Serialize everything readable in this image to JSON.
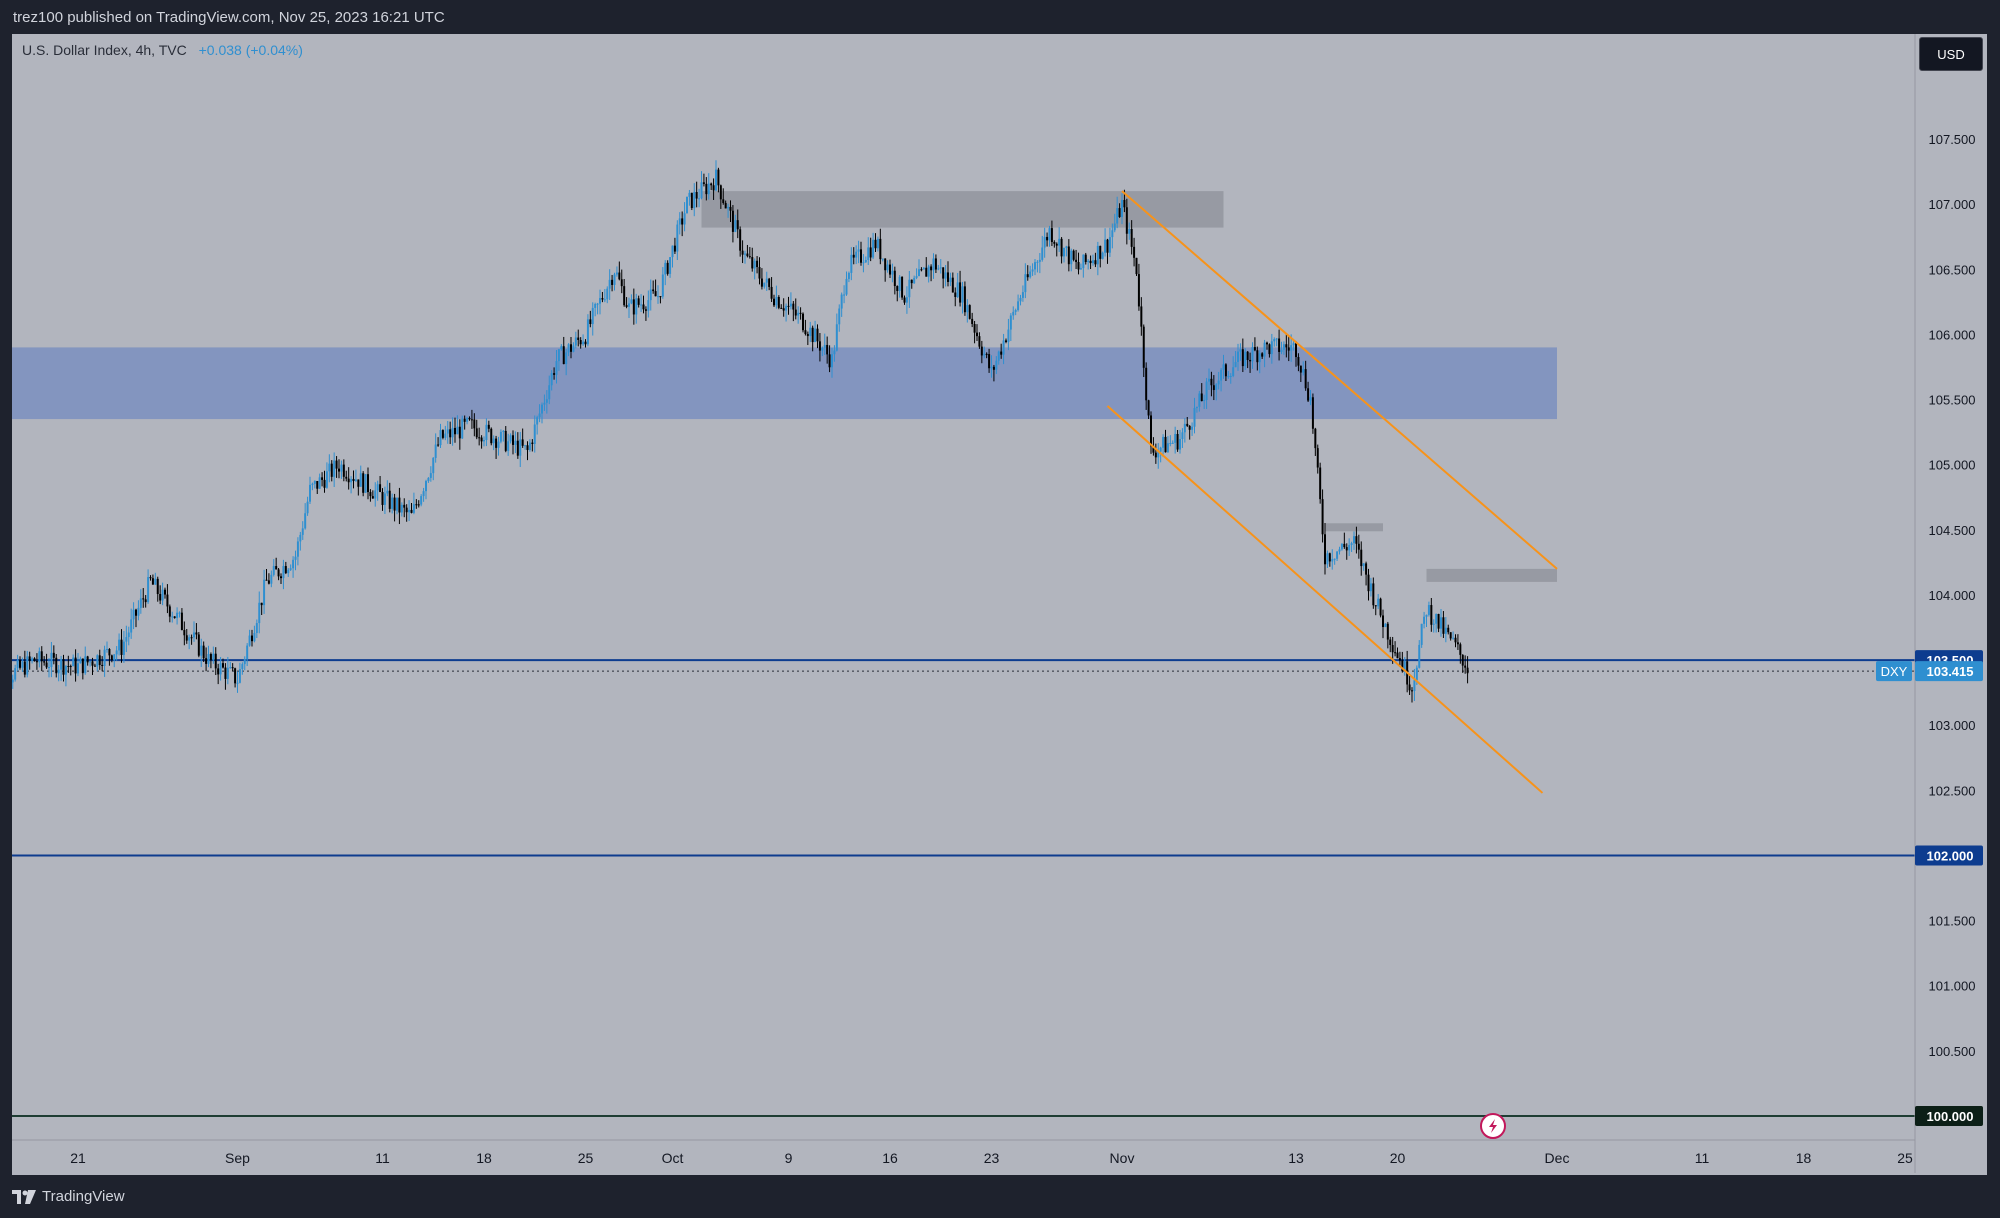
{
  "header": {
    "published_text": "trez100 published on TradingView.com, Nov 25, 2023 16:21 UTC"
  },
  "legend": {
    "symbol_text": "U.S. Dollar Index, 4h, TVC",
    "change_text": "+0.038 (+0.04%)"
  },
  "currency_button": {
    "label": "USD"
  },
  "branding": {
    "label": "TradingView"
  },
  "colors": {
    "background": "#b2b5be",
    "up_candle": "#2f8fd0",
    "down_candle": "#000000",
    "zone_blue": "#7a8fbf",
    "zone_gray": "#8e9199",
    "channel_orange": "#f7931a",
    "level_line": "#0d3c8f",
    "level_line_100": "#1e3d33"
  },
  "chart_data": {
    "type": "candlestick",
    "symbol": "DXY",
    "ylim": [
      99.8,
      108.3
    ],
    "y_ticks": [
      "107.500",
      "107.000",
      "106.500",
      "106.000",
      "105.500",
      "105.000",
      "104.500",
      "104.000",
      "103.500",
      "103.000",
      "102.500",
      "102.000",
      "101.500",
      "101.000",
      "100.500",
      "100.000"
    ],
    "x_ticks": [
      {
        "label": "21",
        "date": "2023-08-21"
      },
      {
        "label": "Sep",
        "date": "2023-09-01"
      },
      {
        "label": "11",
        "date": "2023-09-11"
      },
      {
        "label": "18",
        "date": "2023-09-18"
      },
      {
        "label": "25",
        "date": "2023-09-25"
      },
      {
        "label": "Oct",
        "date": "2023-10-01"
      },
      {
        "label": "9",
        "date": "2023-10-09"
      },
      {
        "label": "16",
        "date": "2023-10-16"
      },
      {
        "label": "23",
        "date": "2023-10-23"
      },
      {
        "label": "Nov",
        "date": "2023-11-01"
      },
      {
        "label": "13",
        "date": "2023-11-13"
      },
      {
        "label": "20",
        "date": "2023-11-20"
      },
      {
        "label": "Dec",
        "date": "2023-12-01"
      },
      {
        "label": "11",
        "date": "2023-12-11"
      },
      {
        "label": "18",
        "date": "2023-12-18"
      },
      {
        "label": "25",
        "date": "2023-12-25"
      }
    ],
    "price_path": [
      [
        "2023-08-15",
        103.3
      ],
      [
        "2023-08-18",
        103.5
      ],
      [
        "2023-08-21",
        103.45
      ],
      [
        "2023-08-24",
        103.6
      ],
      [
        "2023-08-26",
        104.1
      ],
      [
        "2023-08-28",
        103.8
      ],
      [
        "2023-08-30",
        103.5
      ],
      [
        "2023-09-01",
        103.35
      ],
      [
        "2023-09-03",
        104.1
      ],
      [
        "2023-09-05",
        104.3
      ],
      [
        "2023-09-06",
        104.8
      ],
      [
        "2023-09-08",
        105.0
      ],
      [
        "2023-09-11",
        104.75
      ],
      [
        "2023-09-13",
        104.6
      ],
      [
        "2023-09-15",
        105.2
      ],
      [
        "2023-09-17",
        105.3
      ],
      [
        "2023-09-19",
        105.2
      ],
      [
        "2023-09-21",
        105.1
      ],
      [
        "2023-09-23",
        105.8
      ],
      [
        "2023-09-25",
        106.0
      ],
      [
        "2023-09-27",
        106.5
      ],
      [
        "2023-09-28",
        106.2
      ],
      [
        "2023-09-30",
        106.3
      ],
      [
        "2023-10-02",
        107.0
      ],
      [
        "2023-10-04",
        107.2
      ],
      [
        "2023-10-06",
        106.6
      ],
      [
        "2023-10-08",
        106.3
      ],
      [
        "2023-10-10",
        106.1
      ],
      [
        "2023-10-12",
        105.8
      ],
      [
        "2023-10-13",
        106.5
      ],
      [
        "2023-10-15",
        106.7
      ],
      [
        "2023-10-17",
        106.3
      ],
      [
        "2023-10-19",
        106.55
      ],
      [
        "2023-10-21",
        106.3
      ],
      [
        "2023-10-23",
        105.7
      ],
      [
        "2023-10-25",
        106.3
      ],
      [
        "2023-10-27",
        106.8
      ],
      [
        "2023-10-29",
        106.5
      ],
      [
        "2023-10-31",
        106.7
      ],
      [
        "2023-11-01",
        107.0
      ],
      [
        "2023-11-02",
        106.5
      ],
      [
        "2023-11-03",
        105.1
      ],
      [
        "2023-11-05",
        105.2
      ],
      [
        "2023-11-07",
        105.6
      ],
      [
        "2023-11-09",
        105.8
      ],
      [
        "2023-11-11",
        105.9
      ],
      [
        "2023-11-13",
        105.9
      ],
      [
        "2023-11-14",
        105.5
      ],
      [
        "2023-11-15",
        104.3
      ],
      [
        "2023-11-17",
        104.4
      ],
      [
        "2023-11-19",
        103.8
      ],
      [
        "2023-11-21",
        103.3
      ],
      [
        "2023-11-22",
        103.9
      ],
      [
        "2023-11-23",
        103.75
      ],
      [
        "2023-11-24",
        103.6
      ],
      [
        "2023-11-25",
        103.415
      ]
    ],
    "zones": [
      {
        "name": "blue-zone",
        "from": "2023-08-15",
        "to": "2023-12-01",
        "low": 105.35,
        "high": 105.9
      },
      {
        "name": "gray-zone-top",
        "from": "2023-10-03",
        "to": "2023-11-08",
        "low": 106.82,
        "high": 107.1
      },
      {
        "name": "gray-zone-mid",
        "from": "2023-11-15",
        "to": "2023-11-19",
        "low": 104.5,
        "high": 104.55
      },
      {
        "name": "gray-zone-right",
        "from": "2023-11-22",
        "to": "2023-12-01",
        "low": 104.1,
        "high": 104.2
      }
    ],
    "channel": [
      {
        "name": "channel-upper",
        "from": [
          "2023-11-01",
          107.1
        ],
        "to": [
          "2023-12-01",
          104.2
        ]
      },
      {
        "name": "channel-lower",
        "from": [
          "2023-10-31",
          105.45
        ],
        "to": [
          "2023-11-30",
          102.48
        ]
      }
    ],
    "horizontal_levels": [
      {
        "price": 103.5,
        "label": "103.500"
      },
      {
        "price": 102.0,
        "label": "102.000"
      },
      {
        "price": 100.0,
        "label": "100.000"
      }
    ],
    "last_price": {
      "price": 103.415,
      "label": "103.415",
      "symbol": "DXY"
    }
  }
}
